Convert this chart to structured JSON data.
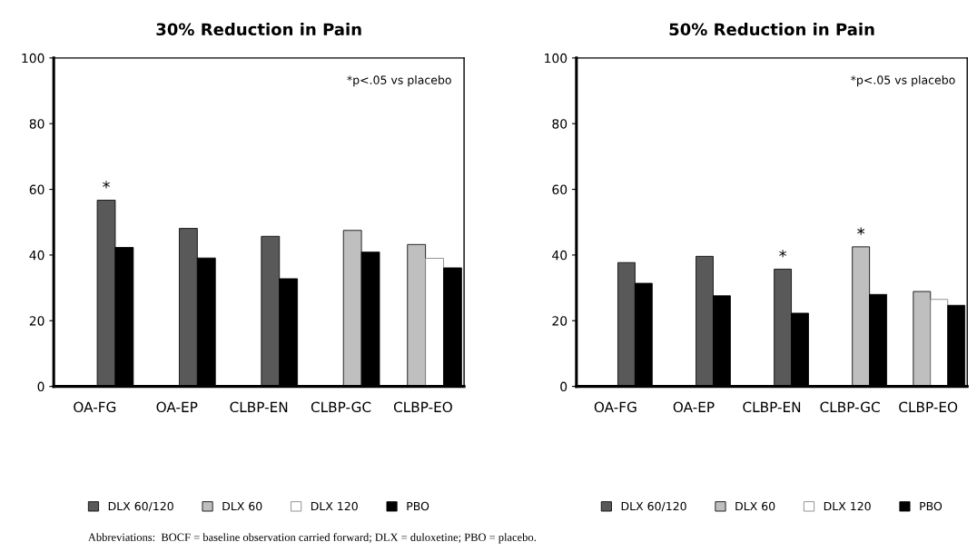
{
  "chart_data": [
    {
      "type": "bar",
      "title": "30% Reduction in Pain",
      "categories": [
        "OA-FG",
        "OA-EP",
        "CLBP-EN",
        "CLBP-GC",
        "CLBP-EO"
      ],
      "series": [
        {
          "name": "DLX 60/120",
          "color": "#595959",
          "values": [
            56.7,
            48.1,
            45.7,
            null,
            null
          ]
        },
        {
          "name": "DLX 60",
          "color": "#bfbfbf",
          "values": [
            null,
            null,
            null,
            47.5,
            43.2
          ]
        },
        {
          "name": "DLX 120",
          "color": "#ffffff",
          "values": [
            null,
            null,
            null,
            null,
            39.0
          ]
        },
        {
          "name": "PBO",
          "color": "#000000",
          "values": [
            42.3,
            39.1,
            32.8,
            40.9,
            36.1
          ]
        }
      ],
      "ylim": [
        0,
        100
      ],
      "yticks": [
        0,
        20,
        40,
        60,
        80,
        100
      ],
      "grid": false,
      "legend": "bottom",
      "annotations": [
        "*p<.05 vs placebo",
        {
          "text": "*",
          "x": "OA-FG",
          "y": 56.7
        }
      ]
    },
    {
      "type": "bar",
      "title": "50% Reduction in Pain",
      "categories": [
        "OA-FG",
        "OA-EP",
        "CLBP-EN",
        "CLBP-GC",
        "CLBP-EO"
      ],
      "series": [
        {
          "name": "DLX 60/120",
          "color": "#595959",
          "values": [
            37.7,
            39.6,
            35.7,
            null,
            null
          ]
        },
        {
          "name": "DLX 60",
          "color": "#bfbfbf",
          "values": [
            null,
            null,
            null,
            42.5,
            28.9
          ]
        },
        {
          "name": "DLX 120",
          "color": "#ffffff",
          "values": [
            null,
            null,
            null,
            null,
            26.5
          ]
        },
        {
          "name": "PBO",
          "color": "#000000",
          "values": [
            31.4,
            27.6,
            22.3,
            28.0,
            24.7
          ]
        }
      ],
      "ylim": [
        0,
        100
      ],
      "yticks": [
        0,
        20,
        40,
        60,
        80,
        100
      ],
      "grid": false,
      "legend": "bottom",
      "annotations": [
        "*p<.05 vs placebo",
        {
          "text": "*",
          "x": "CLBP-EN",
          "y": 35.7
        },
        {
          "text": "*",
          "x": "CLBP-GC",
          "y": 42.5
        },
        "Abbreviations:  BOCF = baseline observation carried forward; DLX = duloxetine; PBO = placebo."
      ]
    }
  ]
}
